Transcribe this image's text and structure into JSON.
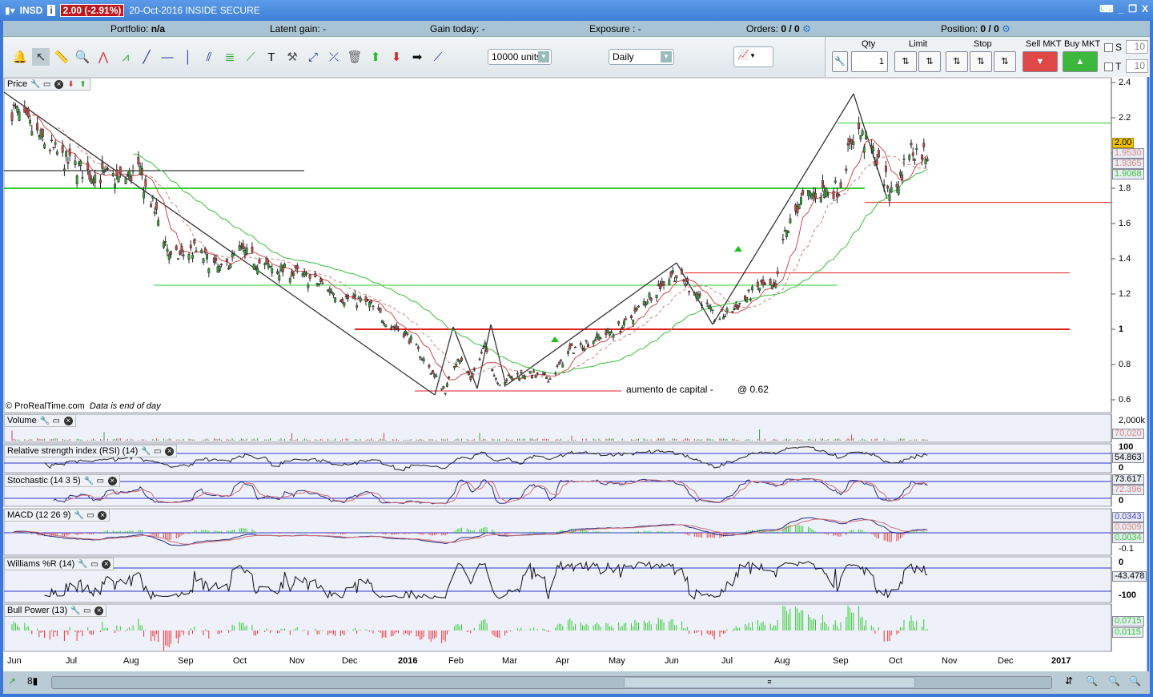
{
  "title_bar": {
    "symbol": "INSD",
    "change": "2.00 (-2.91%)",
    "description": "20-Oct-2016 INSIDE SECURE"
  },
  "info_bar": {
    "portfolio_label": "Portfolio:",
    "portfolio_value": "n/a",
    "latent_label": "Latent gain:",
    "latent_value": "-",
    "today_label": "Gain today:",
    "today_value": "-",
    "exposure_label": "Exposure :",
    "exposure_value": "-",
    "orders_label": "Orders:",
    "orders_value": "0",
    "orders_total": "/ 0",
    "position_label": "Position:",
    "position_value": "0",
    "position_total": "/ 0"
  },
  "toolbar": {
    "tools": [
      "bell-icon",
      "pointer-icon",
      "ruler-icon",
      "magnifier-icon",
      "triangle-pattern-icon",
      "zigzag-icon",
      "trendline-icon",
      "horizontal-line-icon",
      "vertical-line-icon",
      "parallel-lines-icon",
      "fibonacci-icon",
      "channel-icon",
      "text-icon",
      "tools-icon",
      "line-ends-icon",
      "cross-line-icon",
      "trash-icon",
      "green-arrow-up-icon",
      "red-arrow-down-icon",
      "black-arrow-right-icon",
      "segment-icon"
    ],
    "units": "10000 units",
    "period": "Daily"
  },
  "trade_panel": {
    "qty_label": "Qty",
    "qty_value": "1",
    "limit_label": "Limit",
    "stop_label": "Stop",
    "sell_label": "Sell MKT",
    "buy_label": "Buy MKT",
    "s_label": "S",
    "s_value": "10",
    "t_label": "T",
    "t_value": "10"
  },
  "panes": {
    "price": "Price",
    "volume": "Volume",
    "rsi": "Relative strength index (RSI) (14)",
    "stoch": "Stochastic (14 3 5)",
    "macd": "MACD (12 26 9)",
    "williams": "Williams %R (14)",
    "bull": "Bull Power (13)"
  },
  "annotations": {
    "copyright": "© ProRealTime.com",
    "eod": "Data is end of day",
    "capital": "aumento de capital -",
    "at_price": "@ 0.62"
  },
  "colors": {
    "up": "#3aa03a",
    "down": "#c84848",
    "ma_short": "#d04a4a",
    "ma_long": "#3cbf3c",
    "hline_green": "#33cc33",
    "hline_red": "#e02020"
  },
  "axis_tags": {
    "last": "2.00",
    "ma1": "1.9530",
    "ma2": "1.9365",
    "ma3": "1.9068",
    "volume_max": "2,000k",
    "volume": "70,020",
    "rsi_top": "100",
    "rsi": "54.863",
    "rsi_bottom": "0",
    "stoch_k": "73.617",
    "stoch_d": "72.396",
    "stoch_bottom": "0",
    "macd1": "0.0343",
    "macd2": "0.0309",
    "macd3": "0.0034",
    "macd_tick": "-0.1",
    "wr_top": "0",
    "wr": "-43.478",
    "wr_bottom": "-100",
    "bp1": "0.0715",
    "bp2": "0.0115"
  },
  "chart_data": {
    "type": "candlestick",
    "price_ticks": [
      "2.4",
      "2.2",
      "2",
      "1.8",
      "1.6",
      "1.4",
      "1.2",
      "1",
      "0.8",
      "0.6"
    ],
    "x_ticks": [
      "Jun",
      "Jul",
      "Aug",
      "Sep",
      "Oct",
      "Nov",
      "Dec",
      "2016",
      "Feb",
      "Mar",
      "Apr",
      "May",
      "Jun",
      "Jul",
      "Aug",
      "Sep",
      "Oct",
      "Nov",
      "Dec",
      "2017"
    ],
    "approx_closes": [
      [
        "2015-06-01",
        2.25
      ],
      [
        "2015-06-15",
        2.1
      ],
      [
        "2015-07-01",
        1.95
      ],
      [
        "2015-07-15",
        1.88
      ],
      [
        "2015-08-01",
        1.85
      ],
      [
        "2015-08-10",
        1.9
      ],
      [
        "2015-08-20",
        1.65
      ],
      [
        "2015-08-28",
        1.4
      ],
      [
        "2015-09-10",
        1.45
      ],
      [
        "2015-09-25",
        1.33
      ],
      [
        "2015-10-05",
        1.45
      ],
      [
        "2015-10-20",
        1.35
      ],
      [
        "2015-11-05",
        1.32
      ],
      [
        "2015-11-20",
        1.25
      ],
      [
        "2015-12-01",
        1.18
      ],
      [
        "2015-12-15",
        1.15
      ],
      [
        "2015-12-28",
        1.02
      ],
      [
        "2016-01-05",
        0.98
      ],
      [
        "2016-01-20",
        0.75
      ],
      [
        "2016-01-27",
        0.65
      ],
      [
        "2016-02-03",
        0.85
      ],
      [
        "2016-02-10",
        0.72
      ],
      [
        "2016-02-18",
        0.9
      ],
      [
        "2016-02-25",
        0.7
      ],
      [
        "2016-03-10",
        0.75
      ],
      [
        "2016-03-25",
        0.72
      ],
      [
        "2016-04-05",
        0.88
      ],
      [
        "2016-04-20",
        0.95
      ],
      [
        "2016-05-05",
        1.02
      ],
      [
        "2016-05-20",
        1.2
      ],
      [
        "2016-06-01",
        1.32
      ],
      [
        "2016-06-15",
        1.2
      ],
      [
        "2016-06-25",
        1.05
      ],
      [
        "2016-07-05",
        1.12
      ],
      [
        "2016-07-20",
        1.25
      ],
      [
        "2016-07-28",
        1.22
      ],
      [
        "2016-08-01",
        1.5
      ],
      [
        "2016-08-10",
        1.72
      ],
      [
        "2016-08-20",
        1.78
      ],
      [
        "2016-09-01",
        1.8
      ],
      [
        "2016-09-10",
        2.15
      ],
      [
        "2016-09-20",
        2.0
      ],
      [
        "2016-10-01",
        1.75
      ],
      [
        "2016-10-10",
        2.02
      ],
      [
        "2016-10-20",
        2.0
      ]
    ],
    "horizontal_lines": [
      {
        "price": 1.9,
        "color": "#000000"
      },
      {
        "price": 1.8,
        "color": "#33cc33"
      },
      {
        "price": 1.25,
        "color": "#33cc33"
      },
      {
        "price": 2.17,
        "color": "#33cc33"
      },
      {
        "price": 1.72,
        "color": "#e02020"
      },
      {
        "price": 1.32,
        "color": "#e02020"
      },
      {
        "price": 1.0,
        "color": "#e02020"
      },
      {
        "price": 0.65,
        "color": "#e02020"
      }
    ],
    "ylim": [
      0.55,
      2.45
    ]
  }
}
